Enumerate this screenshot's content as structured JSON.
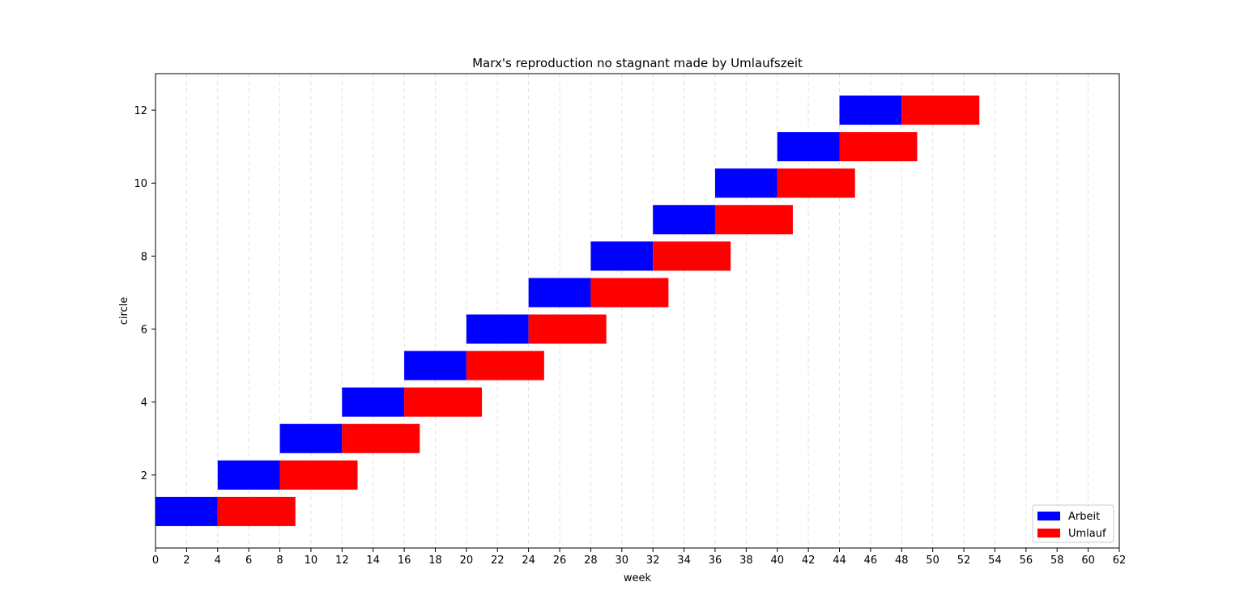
{
  "chart_data": {
    "type": "bar",
    "orientation": "horizontal-stacked",
    "title": "Marx's reproduction no stagnant made by Umlaufszeit",
    "xlabel": "week",
    "ylabel": "circle",
    "xlim": [
      0,
      62
    ],
    "ylim": [
      0,
      13
    ],
    "xticks": [
      0,
      2,
      4,
      6,
      8,
      10,
      12,
      14,
      16,
      18,
      20,
      22,
      24,
      26,
      28,
      30,
      32,
      34,
      36,
      38,
      40,
      42,
      44,
      46,
      48,
      50,
      52,
      54,
      56,
      58,
      60,
      62
    ],
    "yticks": [
      2,
      4,
      6,
      8,
      10,
      12
    ],
    "grid": "x-dashed",
    "legend_position": "lower-right",
    "series": [
      {
        "name": "Arbeit",
        "color": "#0000ff",
        "bars": [
          {
            "y": 1,
            "start": 0,
            "length": 4
          },
          {
            "y": 2,
            "start": 4,
            "length": 4
          },
          {
            "y": 3,
            "start": 8,
            "length": 4
          },
          {
            "y": 4,
            "start": 12,
            "length": 4
          },
          {
            "y": 5,
            "start": 16,
            "length": 4
          },
          {
            "y": 6,
            "start": 20,
            "length": 4
          },
          {
            "y": 7,
            "start": 24,
            "length": 4
          },
          {
            "y": 8,
            "start": 28,
            "length": 4
          },
          {
            "y": 9,
            "start": 32,
            "length": 4
          },
          {
            "y": 10,
            "start": 36,
            "length": 4
          },
          {
            "y": 11,
            "start": 40,
            "length": 4
          },
          {
            "y": 12,
            "start": 44,
            "length": 4
          }
        ]
      },
      {
        "name": "Umlauf",
        "color": "#ff0000",
        "bars": [
          {
            "y": 1,
            "start": 4,
            "length": 5
          },
          {
            "y": 2,
            "start": 8,
            "length": 5
          },
          {
            "y": 3,
            "start": 12,
            "length": 5
          },
          {
            "y": 4,
            "start": 16,
            "length": 5
          },
          {
            "y": 5,
            "start": 20,
            "length": 5
          },
          {
            "y": 6,
            "start": 24,
            "length": 5
          },
          {
            "y": 7,
            "start": 28,
            "length": 5
          },
          {
            "y": 8,
            "start": 32,
            "length": 5
          },
          {
            "y": 9,
            "start": 36,
            "length": 5
          },
          {
            "y": 10,
            "start": 40,
            "length": 5
          },
          {
            "y": 11,
            "start": 44,
            "length": 5
          },
          {
            "y": 12,
            "start": 48,
            "length": 5
          }
        ]
      }
    ]
  }
}
